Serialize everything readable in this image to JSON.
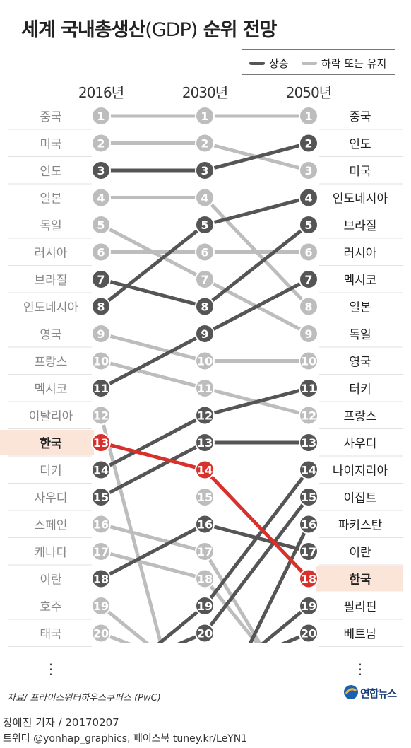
{
  "title": {
    "main": "세계 국내총생산",
    "paren": "(GDP)",
    "tail": " 순위 전망"
  },
  "legend": {
    "rise_label": "상승",
    "fall_label": "하락 또는 유지",
    "rise_color": "#555555",
    "fall_color": "#bdbdbd",
    "highlight_color": "#d8312c",
    "highlight_bg": "#fbe4d8"
  },
  "source": "자료/ 프라이스워터하우스쿠퍼스 (PwC)",
  "credit": {
    "line1": "장예진 기자 / 20170207",
    "line2": "트위터 @yonhap_graphics, 페이스북 tuney.kr/LeYN1"
  },
  "logo": {
    "text": "연합뉴스"
  },
  "chart_data": {
    "type": "line",
    "subtype": "bump",
    "years": [
      "2016년",
      "2030년",
      "2050년"
    ],
    "highlight": "한국",
    "left_labels": [
      "중국",
      "미국",
      "인도",
      "일본",
      "독일",
      "러시아",
      "브라질",
      "인도네시아",
      "영국",
      "프랑스",
      "멕시코",
      "이탈리아",
      "한국",
      "터키",
      "사우디",
      "스페인",
      "캐나다",
      "이란",
      "호주",
      "태국"
    ],
    "right_labels": [
      "중국",
      "인도",
      "미국",
      "인도네시아",
      "브라질",
      "러시아",
      "멕시코",
      "일본",
      "독일",
      "영국",
      "터키",
      "프랑스",
      "사우디",
      "나이지리아",
      "이집트",
      "파키스탄",
      "이란",
      "한국",
      "필리핀",
      "베트남"
    ],
    "countries": [
      {
        "name": "중국",
        "ranks": [
          1,
          1,
          1
        ],
        "trend": "fall"
      },
      {
        "name": "미국",
        "ranks": [
          2,
          2,
          3
        ],
        "trend": "fall"
      },
      {
        "name": "인도",
        "ranks": [
          3,
          3,
          2
        ],
        "trend": "rise"
      },
      {
        "name": "일본",
        "ranks": [
          4,
          4,
          8
        ],
        "trend": "fall"
      },
      {
        "name": "독일",
        "ranks": [
          5,
          7,
          9
        ],
        "trend": "fall"
      },
      {
        "name": "러시아",
        "ranks": [
          6,
          6,
          6
        ],
        "trend": "fall"
      },
      {
        "name": "브라질",
        "ranks": [
          7,
          8,
          5
        ],
        "trend": "rise"
      },
      {
        "name": "인도네시아",
        "ranks": [
          8,
          5,
          4
        ],
        "trend": "rise"
      },
      {
        "name": "영국",
        "ranks": [
          9,
          10,
          10
        ],
        "trend": "fall"
      },
      {
        "name": "프랑스",
        "ranks": [
          10,
          11,
          12
        ],
        "trend": "fall"
      },
      {
        "name": "멕시코",
        "ranks": [
          11,
          9,
          7
        ],
        "trend": "rise"
      },
      {
        "name": "이탈리아",
        "ranks": [
          12,
          null,
          null
        ],
        "trend": "fall"
      },
      {
        "name": "한국",
        "ranks": [
          13,
          14,
          18
        ],
        "trend": "highlight"
      },
      {
        "name": "터키",
        "ranks": [
          14,
          12,
          11
        ],
        "trend": "rise"
      },
      {
        "name": "사우디",
        "ranks": [
          15,
          13,
          13
        ],
        "trend": "rise"
      },
      {
        "name": "스페인",
        "ranks": [
          16,
          17,
          null
        ],
        "trend": "fall"
      },
      {
        "name": "캐나다",
        "ranks": [
          17,
          18,
          null
        ],
        "trend": "fall"
      },
      {
        "name": "이란",
        "ranks": [
          18,
          16,
          17
        ],
        "trend": "rise"
      },
      {
        "name": "호주",
        "ranks": [
          19,
          null,
          null
        ],
        "trend": "fall"
      },
      {
        "name": "태국",
        "ranks": [
          20,
          null,
          null
        ],
        "trend": "fall"
      },
      {
        "name": "나이지리아",
        "ranks": [
          null,
          19,
          14
        ],
        "trend": "rise"
      },
      {
        "name": "이집트",
        "ranks": [
          null,
          20,
          15
        ],
        "trend": "rise"
      },
      {
        "name": "파키스탄",
        "ranks": [
          null,
          null,
          16
        ],
        "trend": "rise"
      },
      {
        "name": "필리핀",
        "ranks": [
          null,
          null,
          19
        ],
        "trend": "rise"
      },
      {
        "name": "베트남",
        "ranks": [
          null,
          null,
          20
        ],
        "trend": "rise"
      }
    ],
    "column_markers": [
      {
        "col": 0,
        "rank": 1,
        "trend": "fall"
      },
      {
        "col": 0,
        "rank": 2,
        "trend": "fall"
      },
      {
        "col": 0,
        "rank": 3,
        "trend": "rise"
      },
      {
        "col": 0,
        "rank": 4,
        "trend": "fall"
      },
      {
        "col": 0,
        "rank": 5,
        "trend": "fall"
      },
      {
        "col": 0,
        "rank": 6,
        "trend": "fall"
      },
      {
        "col": 0,
        "rank": 7,
        "trend": "rise"
      },
      {
        "col": 0,
        "rank": 8,
        "trend": "rise"
      },
      {
        "col": 0,
        "rank": 9,
        "trend": "fall"
      },
      {
        "col": 0,
        "rank": 10,
        "trend": "fall"
      },
      {
        "col": 0,
        "rank": 11,
        "trend": "rise"
      },
      {
        "col": 0,
        "rank": 12,
        "trend": "fall"
      },
      {
        "col": 0,
        "rank": 13,
        "trend": "highlight"
      },
      {
        "col": 0,
        "rank": 14,
        "trend": "rise"
      },
      {
        "col": 0,
        "rank": 15,
        "trend": "rise"
      },
      {
        "col": 0,
        "rank": 16,
        "trend": "fall"
      },
      {
        "col": 0,
        "rank": 17,
        "trend": "fall"
      },
      {
        "col": 0,
        "rank": 18,
        "trend": "rise"
      },
      {
        "col": 0,
        "rank": 19,
        "trend": "fall"
      },
      {
        "col": 0,
        "rank": 20,
        "trend": "fall"
      },
      {
        "col": 1,
        "rank": 1,
        "trend": "fall"
      },
      {
        "col": 1,
        "rank": 2,
        "trend": "fall"
      },
      {
        "col": 1,
        "rank": 3,
        "trend": "rise"
      },
      {
        "col": 1,
        "rank": 4,
        "trend": "fall"
      },
      {
        "col": 1,
        "rank": 5,
        "trend": "rise"
      },
      {
        "col": 1,
        "rank": 6,
        "trend": "fall"
      },
      {
        "col": 1,
        "rank": 7,
        "trend": "fall"
      },
      {
        "col": 1,
        "rank": 8,
        "trend": "rise"
      },
      {
        "col": 1,
        "rank": 9,
        "trend": "rise"
      },
      {
        "col": 1,
        "rank": 10,
        "trend": "fall"
      },
      {
        "col": 1,
        "rank": 11,
        "trend": "fall"
      },
      {
        "col": 1,
        "rank": 12,
        "trend": "rise"
      },
      {
        "col": 1,
        "rank": 13,
        "trend": "rise"
      },
      {
        "col": 1,
        "rank": 14,
        "trend": "highlight"
      },
      {
        "col": 1,
        "rank": 15,
        "trend": "fall"
      },
      {
        "col": 1,
        "rank": 16,
        "trend": "rise"
      },
      {
        "col": 1,
        "rank": 17,
        "trend": "fall"
      },
      {
        "col": 1,
        "rank": 18,
        "trend": "fall"
      },
      {
        "col": 1,
        "rank": 19,
        "trend": "rise"
      },
      {
        "col": 1,
        "rank": 20,
        "trend": "rise"
      },
      {
        "col": 2,
        "rank": 1,
        "trend": "fall"
      },
      {
        "col": 2,
        "rank": 2,
        "trend": "rise"
      },
      {
        "col": 2,
        "rank": 3,
        "trend": "fall"
      },
      {
        "col": 2,
        "rank": 4,
        "trend": "rise"
      },
      {
        "col": 2,
        "rank": 5,
        "trend": "rise"
      },
      {
        "col": 2,
        "rank": 6,
        "trend": "fall"
      },
      {
        "col": 2,
        "rank": 7,
        "trend": "rise"
      },
      {
        "col": 2,
        "rank": 8,
        "trend": "fall"
      },
      {
        "col": 2,
        "rank": 9,
        "trend": "fall"
      },
      {
        "col": 2,
        "rank": 10,
        "trend": "fall"
      },
      {
        "col": 2,
        "rank": 11,
        "trend": "rise"
      },
      {
        "col": 2,
        "rank": 12,
        "trend": "fall"
      },
      {
        "col": 2,
        "rank": 13,
        "trend": "rise"
      },
      {
        "col": 2,
        "rank": 14,
        "trend": "rise"
      },
      {
        "col": 2,
        "rank": 15,
        "trend": "rise"
      },
      {
        "col": 2,
        "rank": 16,
        "trend": "rise"
      },
      {
        "col": 2,
        "rank": 17,
        "trend": "rise"
      },
      {
        "col": 2,
        "rank": 18,
        "trend": "highlight"
      },
      {
        "col": 2,
        "rank": 19,
        "trend": "rise"
      },
      {
        "col": 2,
        "rank": 20,
        "trend": "rise"
      }
    ],
    "ellipsis": "⋮"
  }
}
